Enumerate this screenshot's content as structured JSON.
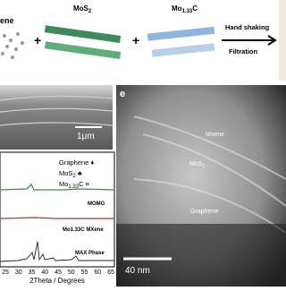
{
  "synthesis": {
    "graphene_label": "ene",
    "mos2_label": {
      "main": "MoS",
      "sub": "2"
    },
    "mxene_label": {
      "main": "Mo",
      "sub": "1.33",
      "tail": "C"
    },
    "plus_1": "+",
    "plus_2": "+",
    "step_1": "Hand shaking",
    "step_2": "Filtration"
  },
  "sem": {
    "scale": "1μm"
  },
  "tem": {
    "panel": "e",
    "layer_1": "Mxene",
    "layer_2": {
      "main": "MoS",
      "sub": "2"
    },
    "layer_3": "Graphene",
    "scale": "40 nm"
  },
  "xrd": {
    "legend": [
      {
        "main": "Graphene",
        "symbol": "♦"
      },
      {
        "main": "MoS",
        "sub": "2",
        "symbol": "♣"
      },
      {
        "main": "Mo",
        "sub": "1.33",
        "tail": "C",
        "symbol": "¤"
      }
    ],
    "trace_1": "MOMG",
    "trace_2": "Mo1.33C MXene",
    "trace_3": "MAX Phase",
    "xticks": [
      25,
      30,
      35,
      40,
      45,
      50,
      55,
      60,
      65
    ],
    "xlabel": "2Theta / Degrees"
  }
}
